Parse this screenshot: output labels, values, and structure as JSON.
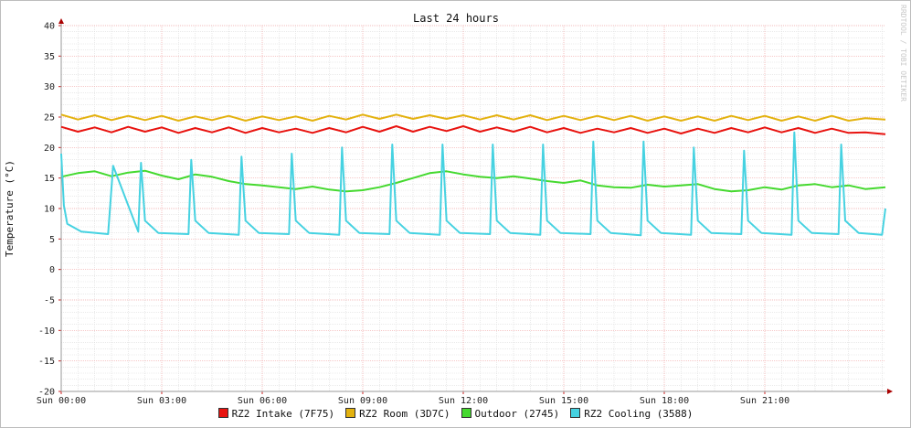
{
  "chart_data": {
    "type": "line",
    "title": "Last 24 hours",
    "ylabel": "Temperature (°C)",
    "watermark": "RRDTOOL / TOBI OETIKER",
    "ylim": [
      -20,
      40
    ],
    "yticks": [
      "40",
      "35",
      "30",
      "25",
      "20",
      "15",
      "10",
      "5",
      "0",
      "-5",
      "-10",
      "-15",
      "-20"
    ],
    "xlim": [
      0,
      24.6
    ],
    "xticks": [
      {
        "value": 0,
        "label": "Sun 00:00"
      },
      {
        "value": 3,
        "label": "Sun 03:00"
      },
      {
        "value": 6,
        "label": "Sun 06:00"
      },
      {
        "value": 9,
        "label": "Sun 09:00"
      },
      {
        "value": 12,
        "label": "Sun 12:00"
      },
      {
        "value": 15,
        "label": "Sun 15:00"
      },
      {
        "value": 18,
        "label": "Sun 18:00"
      },
      {
        "value": 21,
        "label": "Sun 21:00"
      }
    ],
    "grid": true,
    "legend_position": "bottom",
    "series": [
      {
        "name": "RZ2 Intake (7F75)",
        "color": "#e8130f",
        "x": [
          0,
          0.5,
          1.0,
          1.5,
          2.0,
          2.5,
          3.0,
          3.5,
          4.0,
          4.5,
          5.0,
          5.5,
          6.0,
          6.5,
          7.0,
          7.5,
          8.0,
          8.5,
          9.0,
          9.5,
          10.0,
          10.5,
          11.0,
          11.5,
          12.0,
          12.5,
          13.0,
          13.5,
          14.0,
          14.5,
          15.0,
          15.5,
          16.0,
          16.5,
          17.0,
          17.5,
          18.0,
          18.5,
          19.0,
          19.5,
          20.0,
          20.5,
          21.0,
          21.5,
          22.0,
          22.5,
          23.0,
          23.5,
          24.0,
          24.6
        ],
        "values": [
          23.4,
          22.6,
          23.3,
          22.5,
          23.4,
          22.6,
          23.3,
          22.4,
          23.2,
          22.5,
          23.3,
          22.4,
          23.2,
          22.5,
          23.1,
          22.4,
          23.2,
          22.5,
          23.4,
          22.6,
          23.5,
          22.6,
          23.4,
          22.7,
          23.5,
          22.6,
          23.3,
          22.6,
          23.4,
          22.5,
          23.2,
          22.4,
          23.1,
          22.5,
          23.2,
          22.4,
          23.1,
          22.3,
          23.1,
          22.4,
          23.2,
          22.5,
          23.3,
          22.5,
          23.2,
          22.4,
          23.1,
          22.4,
          22.5,
          22.2
        ]
      },
      {
        "name": "RZ2 Room (3D7C)",
        "color": "#e3b20f",
        "x": [
          0,
          0.5,
          1.0,
          1.5,
          2.0,
          2.5,
          3.0,
          3.5,
          4.0,
          4.5,
          5.0,
          5.5,
          6.0,
          6.5,
          7.0,
          7.5,
          8.0,
          8.5,
          9.0,
          9.5,
          10.0,
          10.5,
          11.0,
          11.5,
          12.0,
          12.5,
          13.0,
          13.5,
          14.0,
          14.5,
          15.0,
          15.5,
          16.0,
          16.5,
          17.0,
          17.5,
          18.0,
          18.5,
          19.0,
          19.5,
          20.0,
          20.5,
          21.0,
          21.5,
          22.0,
          22.5,
          23.0,
          23.5,
          24.0,
          24.6
        ],
        "values": [
          25.4,
          24.6,
          25.3,
          24.5,
          25.2,
          24.5,
          25.2,
          24.4,
          25.1,
          24.5,
          25.2,
          24.4,
          25.1,
          24.5,
          25.1,
          24.4,
          25.2,
          24.6,
          25.4,
          24.7,
          25.4,
          24.7,
          25.3,
          24.7,
          25.3,
          24.6,
          25.3,
          24.6,
          25.3,
          24.5,
          25.2,
          24.5,
          25.2,
          24.5,
          25.2,
          24.4,
          25.1,
          24.4,
          25.1,
          24.4,
          25.2,
          24.5,
          25.2,
          24.4,
          25.1,
          24.4,
          25.2,
          24.4,
          24.8,
          24.6
        ]
      },
      {
        "name": "Outdoor (2745)",
        "color": "#45d92f",
        "x": [
          0,
          0.5,
          1.0,
          1.5,
          2.0,
          2.5,
          3.0,
          3.5,
          4.0,
          4.5,
          5.0,
          5.5,
          6.0,
          6.5,
          7.0,
          7.5,
          8.0,
          8.5,
          9.0,
          9.5,
          10.0,
          10.5,
          11.0,
          11.5,
          12.0,
          12.5,
          13.0,
          13.5,
          14.0,
          14.5,
          15.0,
          15.5,
          16.0,
          16.5,
          17.0,
          17.5,
          18.0,
          18.5,
          19.0,
          19.5,
          20.0,
          20.5,
          21.0,
          21.5,
          22.0,
          22.5,
          23.0,
          23.5,
          24.0,
          24.6
        ],
        "values": [
          15.2,
          15.8,
          16.1,
          15.3,
          15.9,
          16.2,
          15.4,
          14.8,
          15.6,
          15.2,
          14.5,
          14.0,
          13.8,
          13.5,
          13.2,
          13.6,
          13.1,
          12.8,
          13.0,
          13.5,
          14.2,
          15.0,
          15.8,
          16.1,
          15.6,
          15.2,
          15.0,
          15.3,
          14.9,
          14.5,
          14.2,
          14.6,
          13.8,
          13.5,
          13.4,
          13.9,
          13.6,
          13.8,
          14.0,
          13.2,
          12.8,
          13.0,
          13.5,
          13.1,
          13.8,
          14.0,
          13.5,
          13.8,
          13.2,
          13.5
        ]
      },
      {
        "name": "RZ2 Cooling (3588)",
        "color": "#46d2e1",
        "x": [
          0,
          0.08,
          0.18,
          0.6,
          1.4,
          1.55,
          2.3,
          2.38,
          2.5,
          2.9,
          3.8,
          3.88,
          4.0,
          4.4,
          5.3,
          5.38,
          5.5,
          5.9,
          6.8,
          6.88,
          7.0,
          7.4,
          8.3,
          8.38,
          8.5,
          8.9,
          9.8,
          9.88,
          10.0,
          10.4,
          11.3,
          11.38,
          11.5,
          11.9,
          12.8,
          12.88,
          13.0,
          13.4,
          14.3,
          14.38,
          14.5,
          14.9,
          15.8,
          15.88,
          16.0,
          16.4,
          17.3,
          17.38,
          17.5,
          17.9,
          18.8,
          18.88,
          19.0,
          19.4,
          20.3,
          20.38,
          20.5,
          20.9,
          21.8,
          21.88,
          22.0,
          22.4,
          23.2,
          23.28,
          23.4,
          23.8,
          24.5,
          24.6
        ],
        "values": [
          19.0,
          10.5,
          7.5,
          6.2,
          5.8,
          17.0,
          6.2,
          17.5,
          8.0,
          6.0,
          5.8,
          18.0,
          8.0,
          6.0,
          5.7,
          18.5,
          8.0,
          6.0,
          5.8,
          19.0,
          8.0,
          6.0,
          5.7,
          20.0,
          8.0,
          6.0,
          5.8,
          20.5,
          8.0,
          6.0,
          5.7,
          20.5,
          8.0,
          6.0,
          5.8,
          20.5,
          8.0,
          6.0,
          5.7,
          20.5,
          8.0,
          6.0,
          5.8,
          21.0,
          8.0,
          6.0,
          5.6,
          21.0,
          8.0,
          6.0,
          5.7,
          20.0,
          8.0,
          6.0,
          5.8,
          19.5,
          8.0,
          6.0,
          5.7,
          22.5,
          8.0,
          6.0,
          5.8,
          20.5,
          8.0,
          6.0,
          5.7,
          10.0
        ]
      }
    ]
  }
}
